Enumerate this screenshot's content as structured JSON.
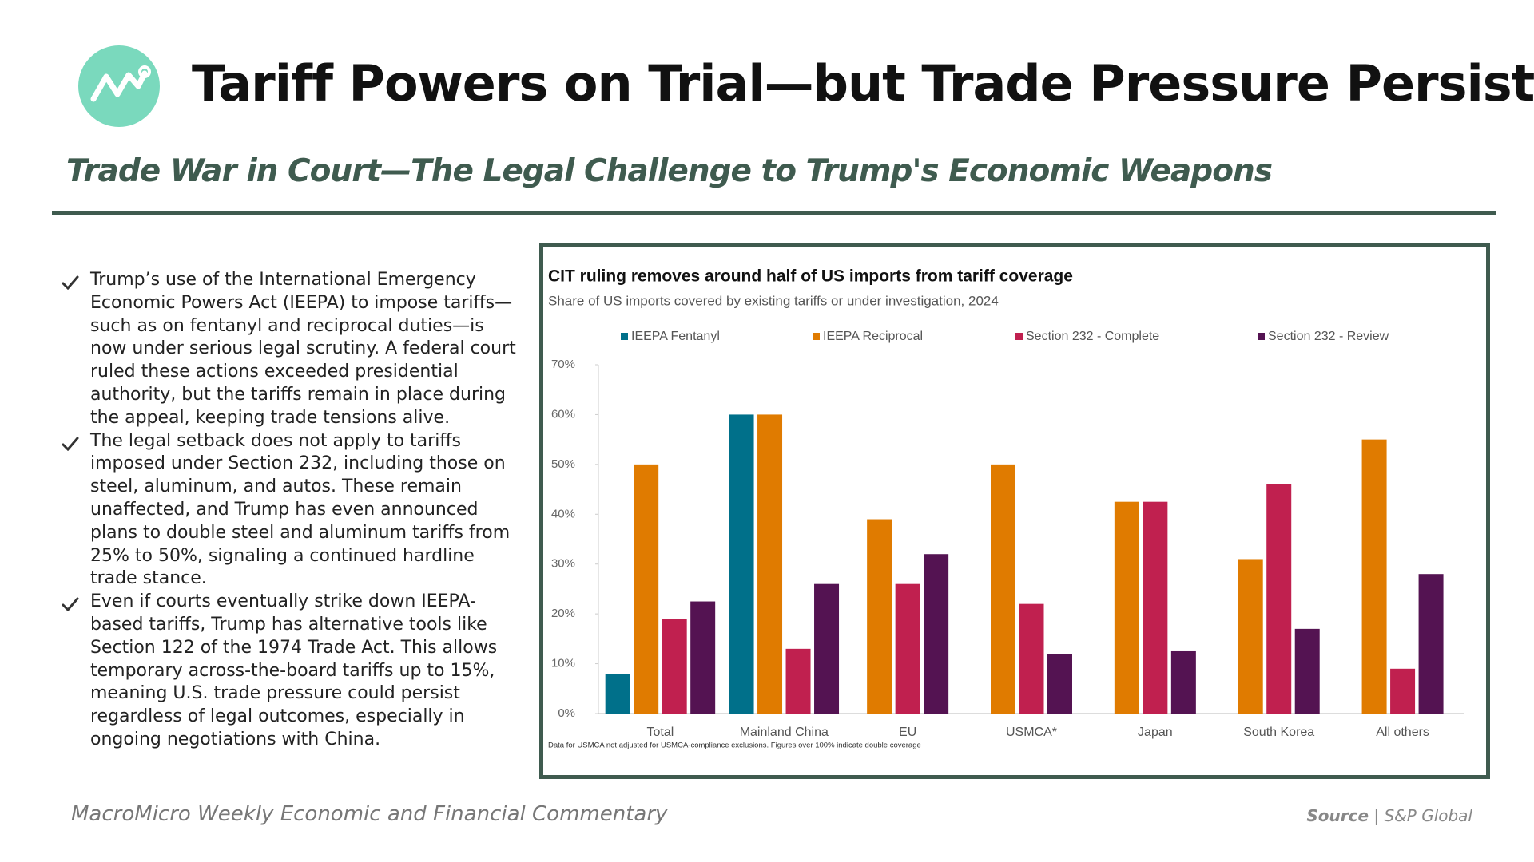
{
  "header": {
    "title": "Tariff Powers on Trial—but Trade Pressure Persists",
    "subtitle": "Trade War in Court—The Legal Challenge to Trump's Economic Weapons"
  },
  "bullets": [
    "Trump’s use of the International Emergency Economic Powers Act (IEEPA) to impose tariffs—such as on fentanyl and reciprocal duties—is now under serious legal scrutiny. A federal court ruled these actions exceeded presidential authority, but the tariffs remain in place during the appeal, keeping trade tensions alive.",
    "The legal setback does not apply to tariffs imposed under Section 232, including those on steel, aluminum, and autos. These remain unaffected, and Trump has even announced plans to double steel and aluminum tariffs from 25% to 50%, signaling a continued hardline trade stance.",
    "Even if courts eventually strike down IEEPA-based tariffs, Trump has alternative tools like Section 122 of the 1974 Trade Act. This allows temporary across-the-board tariffs up to 15%, meaning U.S. trade pressure could persist regardless of legal outcomes, especially in ongoing negotiations with China."
  ],
  "footer": {
    "publication": "MacroMicro Weekly Economic and Financial Commentary",
    "source_label": "Source",
    "separator": "|",
    "source": "S&P Global"
  },
  "chart_data": {
    "type": "bar",
    "title": "CIT ruling removes around half of US imports from tariff coverage",
    "subtitle": "Share of US imports covered by existing tariffs or under investigation, 2024",
    "note": "Data for USMCA not adjusted for USMCA-compliance exclusions. Figures over 100% indicate double coverage",
    "categories": [
      "Total",
      "Mainland China",
      "EU",
      "USMCA*",
      "Japan",
      "South Korea",
      "All others"
    ],
    "series": [
      {
        "name": "IEEPA Fentanyl",
        "color": "#00708a",
        "values": [
          8,
          60,
          null,
          null,
          null,
          null,
          null
        ]
      },
      {
        "name": "IEEPA Reciprocal",
        "color": "#e07b00",
        "values": [
          50,
          60,
          39,
          50,
          42.5,
          31,
          55
        ]
      },
      {
        "name": "Section 232 - Complete",
        "color": "#c0204f",
        "values": [
          19,
          13,
          26,
          22,
          42.5,
          46,
          9
        ]
      },
      {
        "name": "Section 232 - Review",
        "color": "#541352",
        "values": [
          22.5,
          26,
          32,
          12,
          12.5,
          17,
          28
        ]
      }
    ],
    "ylim": [
      0,
      70
    ],
    "yticks": [
      {
        "value": 0,
        "label": "0%"
      },
      {
        "value": 10,
        "label": "10%"
      },
      {
        "value": 20,
        "label": "20%"
      },
      {
        "value": 30,
        "label": "30%"
      },
      {
        "value": 40,
        "label": "40%"
      },
      {
        "value": 50,
        "label": "50%"
      },
      {
        "value": 60,
        "label": "60%"
      },
      {
        "value": 70,
        "label": "70%"
      }
    ],
    "grid": false,
    "legend": "top"
  }
}
